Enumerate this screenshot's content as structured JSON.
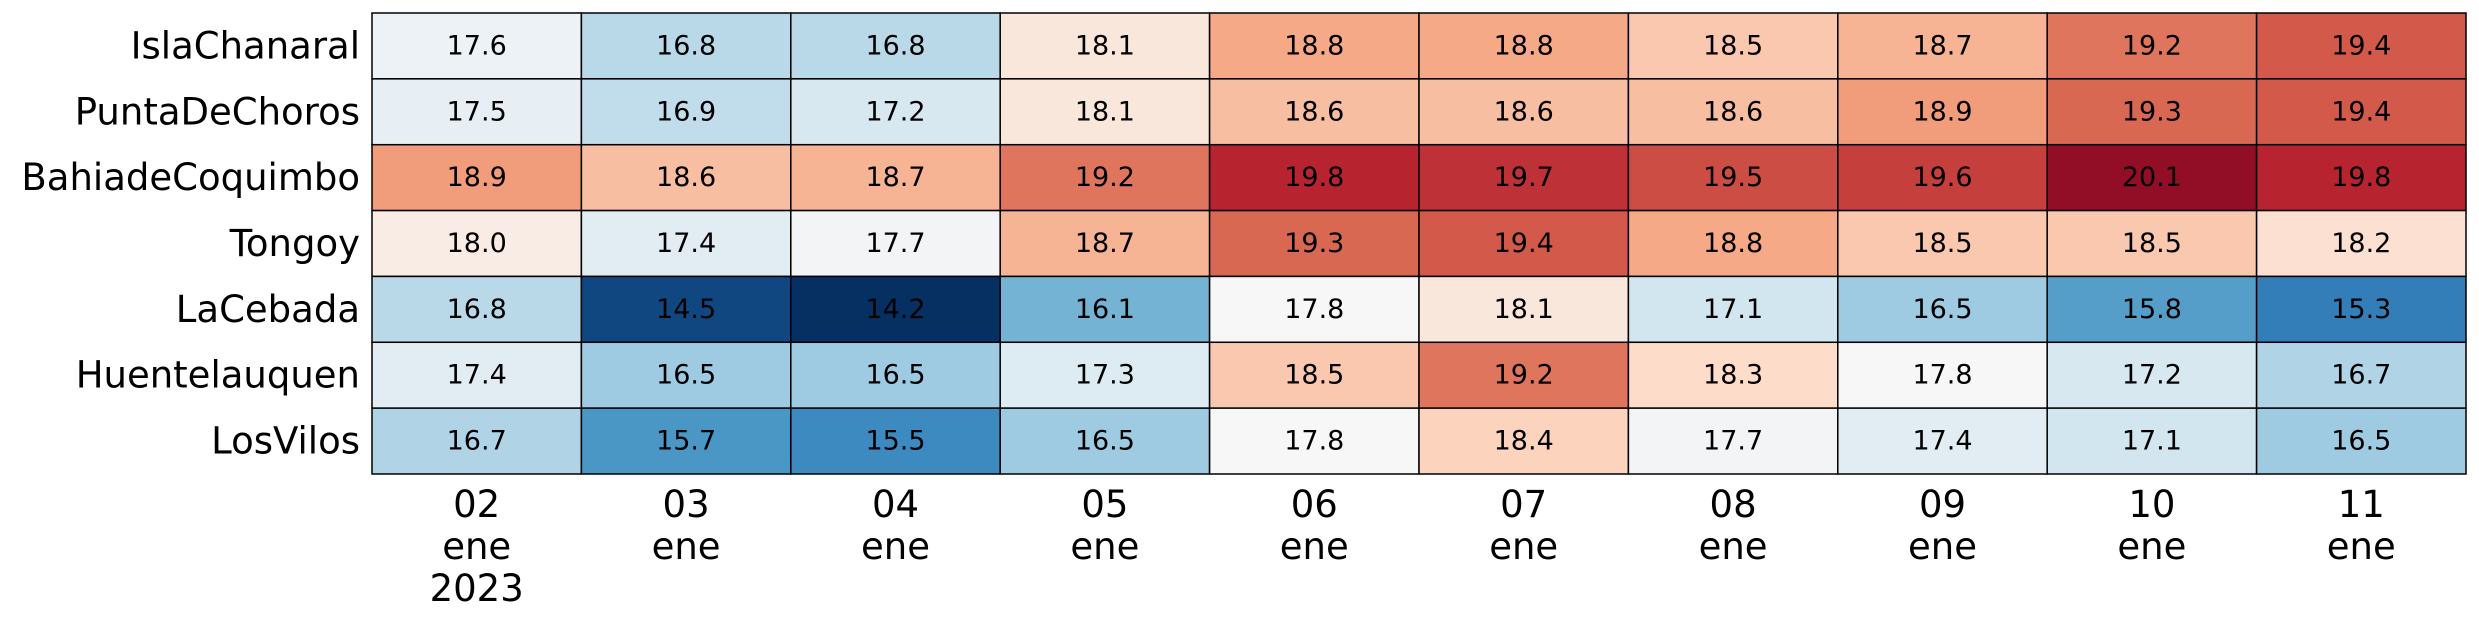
{
  "chart_data": {
    "type": "heatmap",
    "categories": [
      "02\nene\n2023",
      "03\nene",
      "04\nene",
      "05\nene",
      "06\nene",
      "07\nene",
      "08\nene",
      "09\nene",
      "10\nene",
      "11\nene"
    ],
    "rows": [
      "IslaChanaral",
      "PuntaDeChoros",
      "BahiadeCoquimbo",
      "Tongoy",
      "LaCebada",
      "Huentelauquen",
      "LosVilos"
    ],
    "values": [
      [
        17.6,
        16.8,
        16.8,
        18.1,
        18.8,
        18.8,
        18.5,
        18.7,
        19.2,
        19.4
      ],
      [
        17.5,
        16.9,
        17.2,
        18.1,
        18.6,
        18.6,
        18.6,
        18.9,
        19.3,
        19.4
      ],
      [
        18.9,
        18.6,
        18.7,
        19.2,
        19.8,
        19.7,
        19.5,
        19.6,
        20.1,
        19.8
      ],
      [
        18.0,
        17.4,
        17.7,
        18.7,
        19.3,
        19.4,
        18.8,
        18.5,
        18.5,
        18.2
      ],
      [
        16.8,
        14.5,
        14.2,
        16.1,
        17.8,
        18.1,
        17.1,
        16.5,
        15.8,
        15.3
      ],
      [
        17.4,
        16.5,
        16.5,
        17.3,
        18.5,
        19.2,
        18.3,
        17.8,
        17.2,
        16.7
      ],
      [
        16.7,
        15.7,
        15.5,
        16.5,
        17.8,
        18.4,
        17.7,
        17.4,
        17.1,
        16.5
      ]
    ],
    "value_labels": [
      [
        "17.6",
        "16.8",
        "16.8",
        "18.1",
        "18.8",
        "18.8",
        "18.5",
        "18.7",
        "19.2",
        "19.4"
      ],
      [
        "17.5",
        "16.9",
        "17.2",
        "18.1",
        "18.6",
        "18.6",
        "18.6",
        "18.9",
        "19.3",
        "19.4"
      ],
      [
        "18.9",
        "18.6",
        "18.7",
        "19.2",
        "19.8",
        "19.7",
        "19.5",
        "19.6",
        "20.1",
        "19.8"
      ],
      [
        "18.0",
        "17.4",
        "17.7",
        "18.7",
        "19.3",
        "19.4",
        "18.8",
        "18.5",
        "18.5",
        "18.2"
      ],
      [
        "16.8",
        "14.5",
        "14.2",
        "16.1",
        "17.8",
        "18.1",
        "17.1",
        "16.5",
        "15.8",
        "15.3"
      ],
      [
        "17.4",
        "16.5",
        "16.5",
        "17.3",
        "18.5",
        "19.2",
        "18.3",
        "17.8",
        "17.2",
        "16.7"
      ],
      [
        "16.7",
        "15.7",
        "15.5",
        "16.5",
        "17.8",
        "18.4",
        "17.7",
        "17.4",
        "17.1",
        "16.5"
      ]
    ],
    "colormap": [
      "#053061",
      "#2166ac",
      "#4393c3",
      "#92c5de",
      "#d1e5f0",
      "#f7f7f7",
      "#fddbc7",
      "#f4a582",
      "#d6604d",
      "#b2182b",
      "#67001f"
    ],
    "clim": [
      14.2,
      20.4
    ],
    "center": 17.8
  }
}
